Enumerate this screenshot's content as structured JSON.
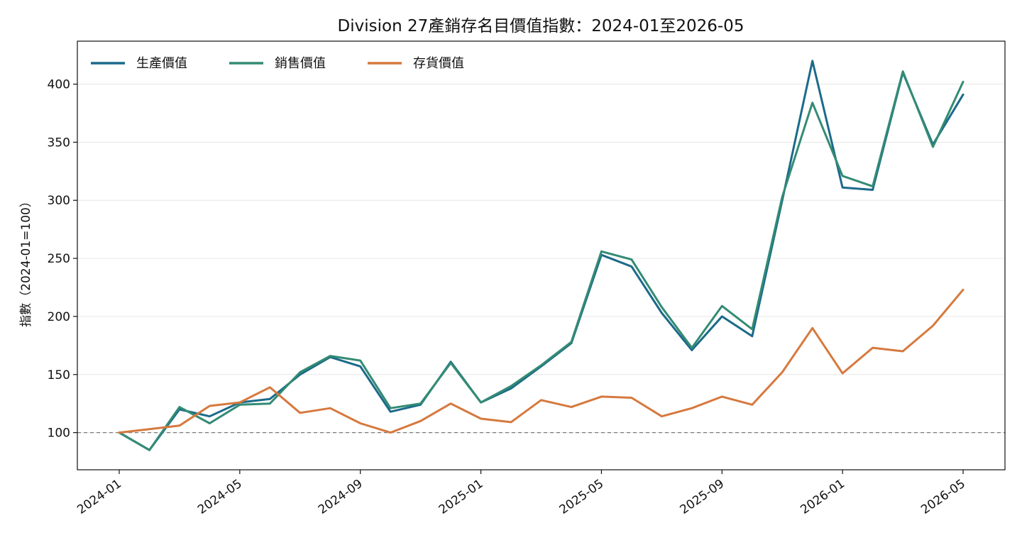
{
  "chart_data": {
    "type": "line",
    "title": "Division 27產銷存名目價值指數：2024-01至2026-05",
    "xlabel": "",
    "ylabel": "指數（2024-01=100）",
    "x": [
      "2024-01",
      "2024-02",
      "2024-03",
      "2024-04",
      "2024-05",
      "2024-06",
      "2024-07",
      "2024-08",
      "2024-09",
      "2024-10",
      "2024-11",
      "2024-12",
      "2025-01",
      "2025-02",
      "2025-03",
      "2025-04",
      "2025-05",
      "2025-06",
      "2025-07",
      "2025-08",
      "2025-09",
      "2025-10",
      "2025-11",
      "2025-12",
      "2026-01",
      "2026-02",
      "2026-03",
      "2026-04",
      "2026-05"
    ],
    "x_ticks": [
      "2024-01",
      "2024-05",
      "2024-09",
      "2025-01",
      "2025-05",
      "2025-09",
      "2026-01",
      "2026-05"
    ],
    "y_ticks": [
      100,
      150,
      200,
      250,
      300,
      350,
      400
    ],
    "ylim": [
      68,
      437
    ],
    "baseline": 100,
    "grid": "horizontal",
    "legend_position": "top-left",
    "series": [
      {
        "name": "生產價值",
        "color": "#1b6a8a",
        "values": [
          100,
          85,
          120,
          114,
          126,
          129,
          150,
          165,
          157,
          118,
          124,
          161,
          126,
          138,
          157,
          177,
          253,
          243,
          203,
          171,
          200,
          183,
          300,
          420,
          311,
          309,
          410,
          348,
          391
        ]
      },
      {
        "name": "銷售價值",
        "color": "#338b73",
        "values": [
          100,
          85,
          122,
          108,
          124,
          125,
          152,
          166,
          162,
          121,
          125,
          160,
          126,
          140,
          158,
          178,
          256,
          249,
          208,
          173,
          209,
          189,
          303,
          384,
          321,
          312,
          411,
          346,
          402
        ]
      },
      {
        "name": "存貨價值",
        "color": "#d6793e",
        "values": [
          100,
          103,
          106,
          123,
          126,
          139,
          117,
          121,
          108,
          100,
          110,
          125,
          112,
          109,
          128,
          122,
          131,
          130,
          114,
          121,
          131,
          124,
          152,
          190,
          151,
          173,
          170,
          192,
          223
        ]
      }
    ]
  }
}
